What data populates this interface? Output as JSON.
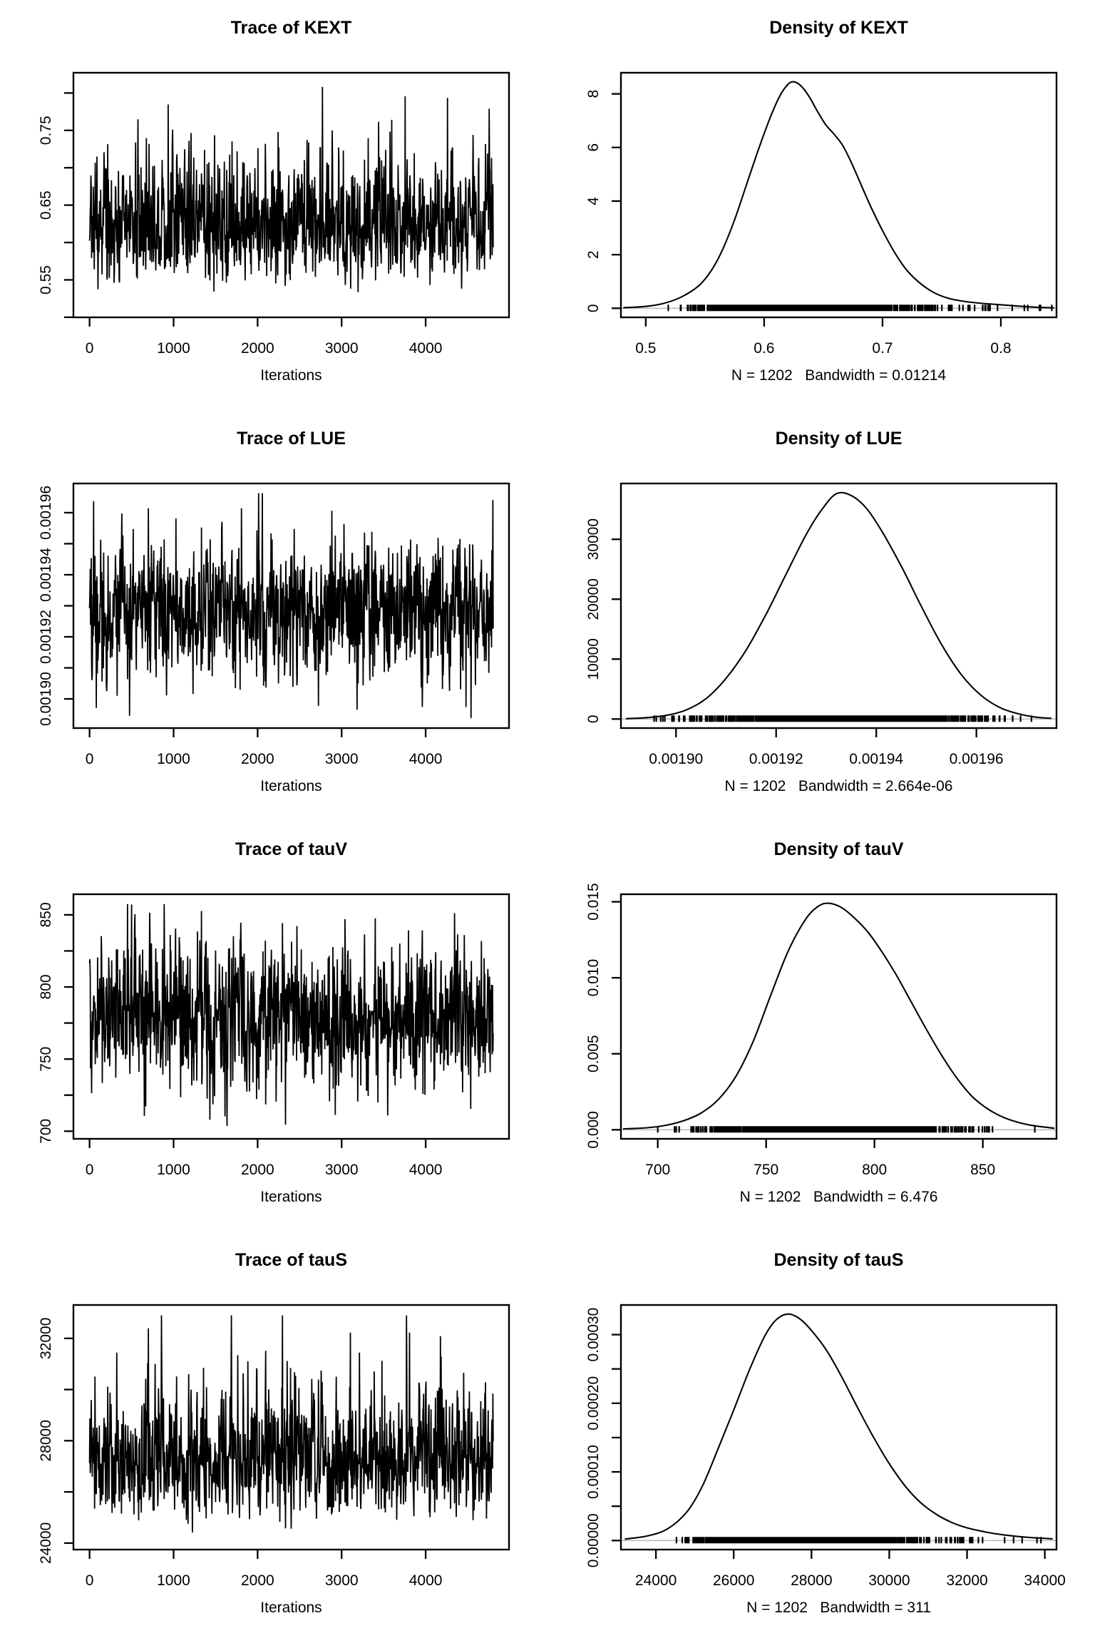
{
  "page": {
    "background": "#ffffff",
    "foreground": "#000000",
    "zero_line_color": "#bdbdbd"
  },
  "chart_data": [
    {
      "type": "line",
      "kind": "trace",
      "param": "KEXT",
      "title": "Trace of KEXT",
      "xlabel": "Iterations",
      "xlim": [
        -192,
        4992
      ],
      "ylim": [
        0.4999,
        0.8271
      ],
      "xticks": [
        {
          "v": 0,
          "label": "0"
        },
        {
          "v": 1000,
          "label": "1000"
        },
        {
          "v": 2000,
          "label": "2000"
        },
        {
          "v": 3000,
          "label": "3000"
        },
        {
          "v": 4000,
          "label": "4000"
        }
      ],
      "yticks": [
        {
          "v": 0.5
        },
        {
          "v": 0.55,
          "label": "0.55"
        },
        {
          "v": 0.6
        },
        {
          "v": 0.65,
          "label": "0.65"
        },
        {
          "v": 0.7
        },
        {
          "v": 0.75,
          "label": "0.75"
        },
        {
          "v": 0.8
        }
      ],
      "series": {
        "n": 1202,
        "x_max": 4804,
        "mean": 0.629,
        "sd": 0.043,
        "ar1": 0.18,
        "skew": 0.28,
        "min": 0.512,
        "max": 0.8145,
        "seed": 20
      }
    },
    {
      "type": "line",
      "kind": "density",
      "param": "KEXT",
      "title": "Density of KEXT",
      "sub": "N = 1202   Bandwidth = 0.01214",
      "xlim": [
        0.479,
        0.847
      ],
      "ylim": [
        -0.338,
        8.788
      ],
      "xticks": [
        {
          "v": 0.5,
          "label": "0.5"
        },
        {
          "v": 0.6,
          "label": "0.6"
        },
        {
          "v": 0.7,
          "label": "0.7"
        },
        {
          "v": 0.8,
          "label": "0.8"
        }
      ],
      "yticks": [
        {
          "v": 0,
          "label": "0"
        },
        {
          "v": 2,
          "label": "2"
        },
        {
          "v": 4,
          "label": "4"
        },
        {
          "v": 6,
          "label": "6"
        },
        {
          "v": 8,
          "label": "8"
        }
      ],
      "curve": [
        [
          0.481,
          0.02
        ],
        [
          0.5,
          0.07
        ],
        [
          0.515,
          0.18
        ],
        [
          0.53,
          0.42
        ],
        [
          0.545,
          0.85
        ],
        [
          0.556,
          1.45
        ],
        [
          0.565,
          2.2
        ],
        [
          0.575,
          3.3
        ],
        [
          0.585,
          4.6
        ],
        [
          0.595,
          5.9
        ],
        [
          0.605,
          7.1
        ],
        [
          0.613,
          7.9
        ],
        [
          0.62,
          8.35
        ],
        [
          0.625,
          8.45
        ],
        [
          0.631,
          8.3
        ],
        [
          0.638,
          7.9
        ],
        [
          0.645,
          7.35
        ],
        [
          0.652,
          6.85
        ],
        [
          0.659,
          6.5
        ],
        [
          0.666,
          6.1
        ],
        [
          0.673,
          5.5
        ],
        [
          0.681,
          4.7
        ],
        [
          0.69,
          3.8
        ],
        [
          0.7,
          2.9
        ],
        [
          0.71,
          2.1
        ],
        [
          0.72,
          1.45
        ],
        [
          0.73,
          1.0
        ],
        [
          0.742,
          0.62
        ],
        [
          0.755,
          0.38
        ],
        [
          0.77,
          0.25
        ],
        [
          0.785,
          0.18
        ],
        [
          0.8,
          0.13
        ],
        [
          0.815,
          0.08
        ],
        [
          0.83,
          0.04
        ],
        [
          0.845,
          0.015
        ]
      ],
      "rug": {
        "n": 1202,
        "mean": 0.634,
        "sd": 0.05,
        "skew": 0.3,
        "min": 0.513,
        "max": 0.843,
        "seed": 21
      }
    },
    {
      "type": "line",
      "kind": "trace",
      "param": "LUE",
      "title": "Trace of LUE",
      "xlabel": "Iterations",
      "xlim": [
        -192,
        4992
      ],
      "ylim": [
        0.0018906,
        0.0019694
      ],
      "xticks": [
        {
          "v": 0,
          "label": "0"
        },
        {
          "v": 1000,
          "label": "1000"
        },
        {
          "v": 2000,
          "label": "2000"
        },
        {
          "v": 3000,
          "label": "3000"
        },
        {
          "v": 4000,
          "label": "4000"
        }
      ],
      "yticks": [
        {
          "v": 0.0019,
          "label": "0.00190"
        },
        {
          "v": 0.00191
        },
        {
          "v": 0.00192,
          "label": "0.00192"
        },
        {
          "v": 0.00193
        },
        {
          "v": 0.00194,
          "label": "0.00194"
        },
        {
          "v": 0.00195
        },
        {
          "v": 0.00196,
          "label": "0.00196"
        }
      ],
      "series": {
        "n": 1202,
        "x_max": 4804,
        "mean": 0.0019285,
        "sd": 1.12e-05,
        "ar1": 0.15,
        "skew": 0.05,
        "min": 0.0018935,
        "max": 0.0019663,
        "seed": 22
      }
    },
    {
      "type": "line",
      "kind": "density",
      "param": "LUE",
      "title": "Density of LUE",
      "sub": "N = 1202   Bandwidth = 2.664e-06",
      "xlim": [
        0.001889,
        0.001976
      ],
      "ylim": [
        -1512,
        39312
      ],
      "xticks": [
        {
          "v": 0.0019,
          "label": "0.00190"
        },
        {
          "v": 0.00192,
          "label": "0.00192"
        },
        {
          "v": 0.00194,
          "label": "0.00194"
        },
        {
          "v": 0.00196,
          "label": "0.00196"
        }
      ],
      "yticks": [
        {
          "v": 0,
          "label": "0"
        },
        {
          "v": 10000,
          "label": "10000"
        },
        {
          "v": 20000,
          "label": "20000"
        },
        {
          "v": 30000,
          "label": "30000"
        }
      ],
      "curve": [
        [
          0.00189,
          60
        ],
        [
          0.001894,
          220
        ],
        [
          0.001898,
          600
        ],
        [
          0.001902,
          1500
        ],
        [
          0.001906,
          3400
        ],
        [
          0.00191,
          6800
        ],
        [
          0.001914,
          11500
        ],
        [
          0.001918,
          17500
        ],
        [
          0.001922,
          24200
        ],
        [
          0.001926,
          30800
        ],
        [
          0.001929,
          34800
        ],
        [
          0.001932,
          37600
        ],
        [
          0.001935,
          37300
        ],
        [
          0.001938,
          35200
        ],
        [
          0.001941,
          31500
        ],
        [
          0.001945,
          25500
        ],
        [
          0.001949,
          18800
        ],
        [
          0.001953,
          12500
        ],
        [
          0.001957,
          7400
        ],
        [
          0.001961,
          3900
        ],
        [
          0.001965,
          1800
        ],
        [
          0.001969,
          750
        ],
        [
          0.001972,
          300
        ],
        [
          0.001975,
          120
        ]
      ],
      "rug": {
        "n": 1202,
        "mean": 0.0019315,
        "sd": 1.25e-05,
        "min": 0.001894,
        "max": 0.001971,
        "seed": 23
      }
    },
    {
      "type": "line",
      "kind": "trace",
      "param": "tauV",
      "title": "Trace of tauV",
      "xlabel": "Iterations",
      "xlim": [
        -192,
        4992
      ],
      "ylim": [
        694.7,
        864.3
      ],
      "xticks": [
        {
          "v": 0,
          "label": "0"
        },
        {
          "v": 1000,
          "label": "1000"
        },
        {
          "v": 2000,
          "label": "2000"
        },
        {
          "v": 3000,
          "label": "3000"
        },
        {
          "v": 4000,
          "label": "4000"
        }
      ],
      "yticks": [
        {
          "v": 700,
          "label": "700"
        },
        {
          "v": 725
        },
        {
          "v": 750,
          "label": "750"
        },
        {
          "v": 775
        },
        {
          "v": 800,
          "label": "800"
        },
        {
          "v": 825
        },
        {
          "v": 850,
          "label": "850"
        }
      ],
      "series": {
        "n": 1202,
        "x_max": 4804,
        "mean": 779,
        "sd": 26,
        "ar1": 0.15,
        "skew": 0.05,
        "min": 701,
        "max": 857.5,
        "seed": 24
      }
    },
    {
      "type": "line",
      "kind": "density",
      "param": "tauV",
      "title": "Density of tauV",
      "sub": "N = 1202   Bandwidth = 6.476",
      "xlim": [
        683,
        884
      ],
      "ylim": [
        -0.000596,
        0.015496
      ],
      "xticks": [
        {
          "v": 700,
          "label": "700"
        },
        {
          "v": 750,
          "label": "750"
        },
        {
          "v": 800,
          "label": "800"
        },
        {
          "v": 850,
          "label": "850"
        }
      ],
      "yticks": [
        {
          "v": 0,
          "label": "0.000"
        },
        {
          "v": 0.005,
          "label": "0.005"
        },
        {
          "v": 0.01,
          "label": "0.010"
        },
        {
          "v": 0.015,
          "label": "0.015"
        }
      ],
      "curve": [
        [
          684,
          6e-05
        ],
        [
          695,
          0.00013
        ],
        [
          704,
          0.0003
        ],
        [
          712,
          0.0006
        ],
        [
          720,
          0.0011
        ],
        [
          728,
          0.002
        ],
        [
          736,
          0.0035
        ],
        [
          744,
          0.0058
        ],
        [
          752,
          0.0088
        ],
        [
          760,
          0.0117
        ],
        [
          768,
          0.0138
        ],
        [
          774,
          0.0147
        ],
        [
          779,
          0.0149
        ],
        [
          785,
          0.0146
        ],
        [
          791,
          0.0139
        ],
        [
          797,
          0.013
        ],
        [
          803,
          0.0118
        ],
        [
          810,
          0.0102
        ],
        [
          817,
          0.0084
        ],
        [
          824,
          0.0066
        ],
        [
          831,
          0.0049
        ],
        [
          838,
          0.0034
        ],
        [
          845,
          0.0022
        ],
        [
          852,
          0.0014
        ],
        [
          859,
          0.00085
        ],
        [
          866,
          0.0005
        ],
        [
          873,
          0.00028
        ],
        [
          883,
          0.0001
        ]
      ],
      "rug": {
        "n": 1202,
        "mean": 781,
        "sd": 28,
        "min": 700,
        "max": 874,
        "seed": 25
      }
    },
    {
      "type": "line",
      "kind": "trace",
      "param": "tauS",
      "title": "Trace of tauS",
      "xlabel": "Iterations",
      "xlim": [
        -192,
        4992
      ],
      "ylim": [
        23746,
        33304
      ],
      "xticks": [
        {
          "v": 0,
          "label": "0"
        },
        {
          "v": 1000,
          "label": "1000"
        },
        {
          "v": 2000,
          "label": "2000"
        },
        {
          "v": 3000,
          "label": "3000"
        },
        {
          "v": 4000,
          "label": "4000"
        }
      ],
      "yticks": [
        {
          "v": 24000,
          "label": "24000"
        },
        {
          "v": 26000
        },
        {
          "v": 28000,
          "label": "28000"
        },
        {
          "v": 30000
        },
        {
          "v": 32000,
          "label": "32000"
        }
      ],
      "series": {
        "n": 1202,
        "x_max": 4804,
        "mean": 27350,
        "sd": 1320,
        "ar1": 0.18,
        "skew": 0.35,
        "min": 24120,
        "max": 32900,
        "seed": 26
      }
    },
    {
      "type": "line",
      "kind": "density",
      "param": "tauS",
      "title": "Density of tauS",
      "sub": "N = 1202   Bandwidth = 311",
      "xlim": [
        23100,
        34300
      ],
      "ylim": [
        -1.32e-05,
        0.0003432
      ],
      "xticks": [
        {
          "v": 24000,
          "label": "24000"
        },
        {
          "v": 26000,
          "label": "26000"
        },
        {
          "v": 28000,
          "label": "28000"
        },
        {
          "v": 30000,
          "label": "30000"
        },
        {
          "v": 32000,
          "label": "32000"
        },
        {
          "v": 34000,
          "label": "34000"
        }
      ],
      "yticks": [
        {
          "v": 0,
          "label": "0.00000"
        },
        {
          "v": 5e-05
        },
        {
          "v": 0.0001,
          "label": "0.00010"
        },
        {
          "v": 0.00015
        },
        {
          "v": 0.0002,
          "label": "0.00020"
        },
        {
          "v": 0.00025
        },
        {
          "v": 0.0003,
          "label": "0.00030"
        }
      ],
      "curve": [
        [
          23200,
          2e-06
        ],
        [
          23800,
          7e-06
        ],
        [
          24300,
          1.7e-05
        ],
        [
          24800,
          4.2e-05
        ],
        [
          25200,
          8e-05
        ],
        [
          25600,
          0.000134
        ],
        [
          26000,
          0.00019
        ],
        [
          26400,
          0.000248
        ],
        [
          26800,
          0.000298
        ],
        [
          27100,
          0.000322
        ],
        [
          27400,
          0.00033
        ],
        [
          27700,
          0.000323
        ],
        [
          28000,
          0.000306
        ],
        [
          28400,
          0.000276
        ],
        [
          28800,
          0.000236
        ],
        [
          29200,
          0.000192
        ],
        [
          29600,
          0.00015
        ],
        [
          30000,
          0.000112
        ],
        [
          30400,
          8e-05
        ],
        [
          30800,
          5.55e-05
        ],
        [
          31200,
          3.85e-05
        ],
        [
          31600,
          2.65e-05
        ],
        [
          32000,
          1.85e-05
        ],
        [
          32500,
          1.22e-05
        ],
        [
          33000,
          7.8e-06
        ],
        [
          33600,
          4.5e-06
        ],
        [
          34200,
          2.5e-06
        ]
      ],
      "rug": {
        "n": 1202,
        "mean": 27600,
        "sd": 1480,
        "skew": 0.35,
        "min": 24250,
        "max": 33900,
        "seed": 27
      }
    }
  ]
}
